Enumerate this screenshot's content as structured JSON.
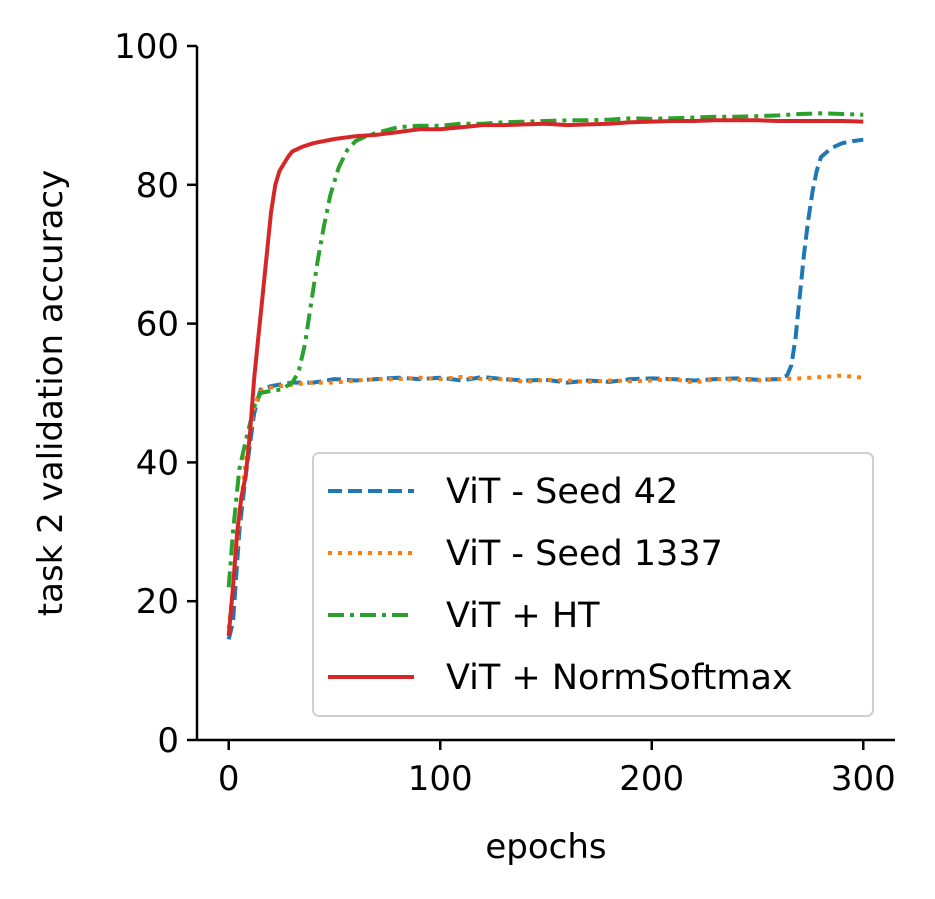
{
  "chart_data": {
    "type": "line",
    "title": "",
    "xlabel": "epochs",
    "ylabel": "task 2 validation accuracy",
    "xlim": [
      -15,
      315
    ],
    "ylim": [
      0,
      100
    ],
    "xticks": [
      0,
      100,
      200,
      300
    ],
    "yticks": [
      0,
      20,
      40,
      60,
      80,
      100
    ],
    "grid": false,
    "legend_position": "lower-right",
    "series": [
      {
        "name": "ViT - Seed 42",
        "color": "#1f77b4",
        "dash": "dashed",
        "x": [
          0,
          2,
          5,
          8,
          12,
          15,
          20,
          30,
          40,
          50,
          60,
          70,
          80,
          90,
          100,
          110,
          120,
          130,
          140,
          150,
          160,
          170,
          180,
          190,
          200,
          210,
          220,
          230,
          240,
          250,
          260,
          264,
          266,
          268,
          270,
          272,
          274,
          276,
          278,
          280,
          285,
          290,
          295,
          300
        ],
        "y": [
          14.5,
          17,
          30,
          38,
          47,
          50.5,
          51,
          51.5,
          51.5,
          52,
          51.8,
          52,
          52.2,
          52,
          52.2,
          51.8,
          52.3,
          52,
          51.8,
          51.9,
          51.5,
          51.8,
          51.6,
          52,
          52.1,
          52,
          51.8,
          52,
          52.1,
          51.9,
          52,
          52.5,
          54,
          58,
          64,
          70,
          75,
          79,
          82,
          84,
          85.3,
          86,
          86.3,
          86.5
        ]
      },
      {
        "name": "ViT - Seed 1337",
        "color": "#ff7f0e",
        "dash": "dotted",
        "x": [
          0,
          2,
          5,
          8,
          12,
          15,
          20,
          30,
          40,
          50,
          60,
          70,
          80,
          90,
          100,
          110,
          120,
          130,
          140,
          150,
          160,
          170,
          180,
          190,
          200,
          210,
          220,
          230,
          240,
          250,
          260,
          270,
          280,
          290,
          300
        ],
        "y": [
          16,
          22,
          32,
          40,
          48,
          50.3,
          50.8,
          51.2,
          51.5,
          51.5,
          51.8,
          52,
          52,
          52.2,
          52,
          52.3,
          52,
          52,
          51.6,
          51.9,
          51.8,
          51.6,
          51.8,
          51.7,
          51.8,
          52,
          51.5,
          52,
          51.9,
          51.8,
          52,
          52.1,
          52.3,
          52.5,
          52.2
        ]
      },
      {
        "name": "ViT + HT",
        "color": "#2ca02c",
        "dash": "dashdot",
        "x": [
          0,
          2,
          5,
          8,
          12,
          15,
          20,
          25,
          30,
          33,
          36,
          39,
          42,
          45,
          48,
          52,
          56,
          60,
          65,
          70,
          80,
          90,
          100,
          110,
          120,
          130,
          140,
          150,
          160,
          170,
          180,
          190,
          200,
          210,
          220,
          230,
          240,
          250,
          260,
          270,
          280,
          290,
          300
        ],
        "y": [
          22,
          30,
          39,
          43,
          48,
          50,
          50.3,
          50.5,
          51.5,
          53,
          57,
          63,
          69,
          74,
          78.5,
          82.5,
          85,
          86.3,
          87,
          87.5,
          88.3,
          88.5,
          88.5,
          88.8,
          88.8,
          89,
          89.1,
          89.2,
          89.3,
          89.3,
          89.4,
          89.6,
          89.5,
          89.6,
          89.7,
          89.8,
          89.8,
          89.9,
          90,
          90.2,
          90.3,
          90.2,
          90.1
        ]
      },
      {
        "name": "ViT + NormSoftmax",
        "color": "#d62728",
        "dash": "solid",
        "x": [
          0,
          2,
          4,
          6,
          8,
          10,
          12,
          14,
          16,
          18,
          20,
          22,
          24,
          26,
          28,
          30,
          35,
          40,
          50,
          60,
          70,
          80,
          90,
          100,
          110,
          120,
          130,
          140,
          150,
          160,
          170,
          180,
          190,
          200,
          210,
          220,
          230,
          240,
          250,
          260,
          270,
          280,
          290,
          300
        ],
        "y": [
          15,
          22,
          30,
          35,
          38,
          44,
          52,
          58,
          64,
          70,
          76,
          80,
          82,
          83,
          84,
          84.8,
          85.5,
          86,
          86.6,
          87,
          87.2,
          87.6,
          88,
          88,
          88.3,
          88.6,
          88.6,
          88.7,
          88.8,
          88.6,
          88.7,
          88.8,
          89,
          89.1,
          89.2,
          89.2,
          89.3,
          89.3,
          89.3,
          89.2,
          89.2,
          89.2,
          89.2,
          89.1
        ]
      }
    ]
  }
}
